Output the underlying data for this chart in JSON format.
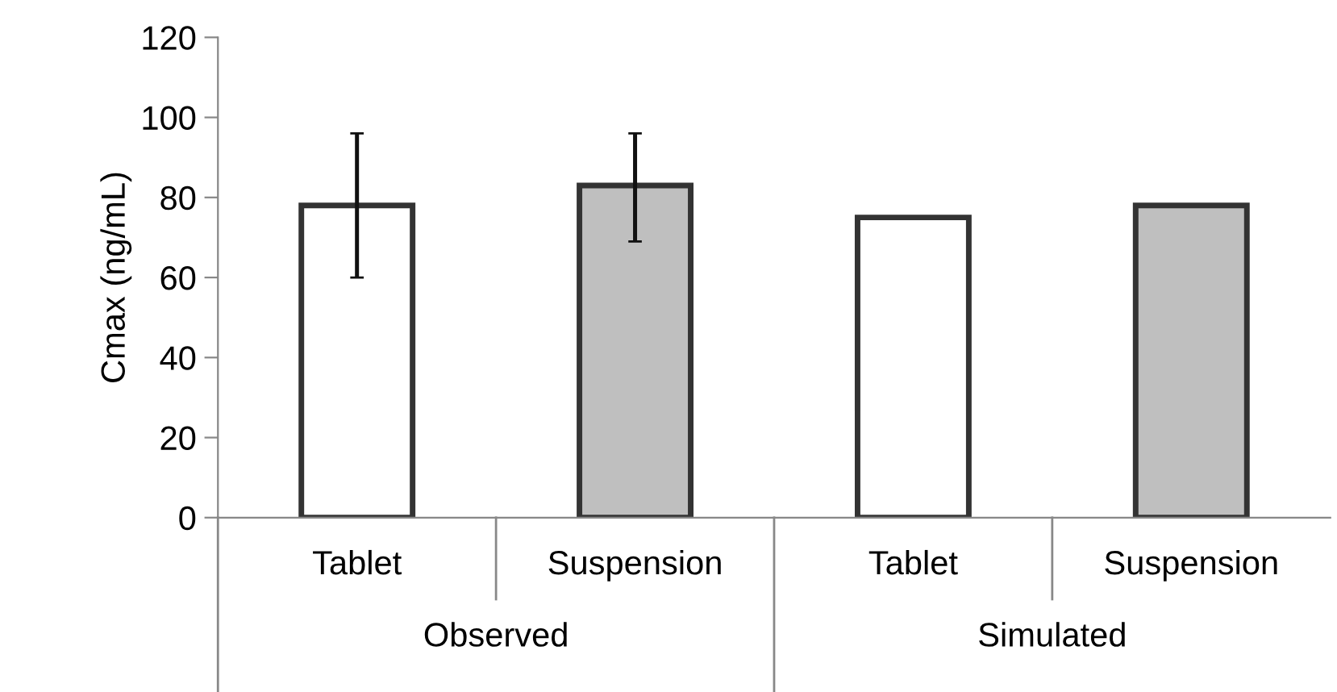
{
  "chart_data": {
    "type": "bar",
    "ylabel": "Cmax (ng/mL)",
    "categories": [
      "Tablet",
      "Suspension",
      "Tablet",
      "Suspension"
    ],
    "values": [
      78,
      83,
      75,
      78
    ],
    "colors": [
      "#ffffff",
      "#bfbfbf",
      "#ffffff",
      "#bfbfbf"
    ],
    "errors": [
      [
        60,
        96
      ],
      [
        69,
        96
      ],
      null,
      null
    ],
    "annotations": [
      "Observed",
      "Simulated"
    ],
    "ylim": [
      0,
      120
    ],
    "yticks": [
      0,
      20,
      40,
      60,
      80,
      100,
      120
    ],
    "grid": false,
    "legend": false
  }
}
